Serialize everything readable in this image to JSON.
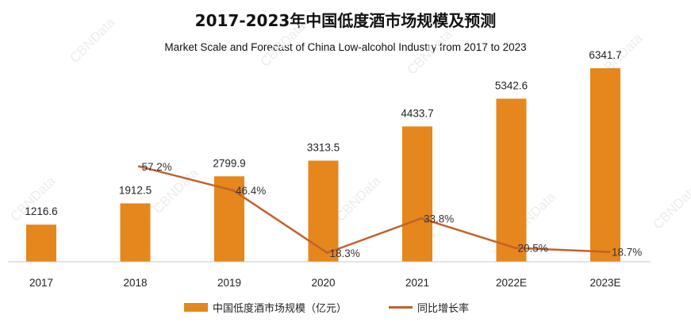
{
  "chart_data": {
    "type": "bar+line",
    "title": "2017-2023年中国低度酒市场规模及预测",
    "subtitle": "Market Scale and Forecast of China Low-alcohol Industry from 2017 to 2023",
    "categories": [
      "2017",
      "2018",
      "2019",
      "2020",
      "2021",
      "2022E",
      "2023E"
    ],
    "series": [
      {
        "name": "中国低度酒市场规模（亿元）",
        "type": "bar",
        "values": [
          1216.6,
          1912.5,
          2799.9,
          3313.5,
          4433.7,
          5342.6,
          6341.7
        ],
        "labels": [
          "1216.6",
          "1912.5",
          "2799.9",
          "3313.5",
          "4433.7",
          "5342.6",
          "6341.7"
        ]
      },
      {
        "name": "同比增长率",
        "type": "line",
        "values": [
          null,
          57.2,
          46.4,
          18.3,
          33.8,
          20.5,
          18.7
        ],
        "labels": [
          "",
          "57.2%",
          "46.4%",
          "18.3%",
          "33.8%",
          "20.5%",
          "18.7%"
        ]
      }
    ],
    "ylim_bar": [
      0,
      7000
    ],
    "ylim_line": [
      0,
      130
    ],
    "grid": false,
    "legend_position": "bottom-center",
    "watermark": "CBNData"
  },
  "colors": {
    "bar": "#E5871C",
    "line": "#C0622D",
    "text": "#222222",
    "axis": "#C8C8C8"
  }
}
